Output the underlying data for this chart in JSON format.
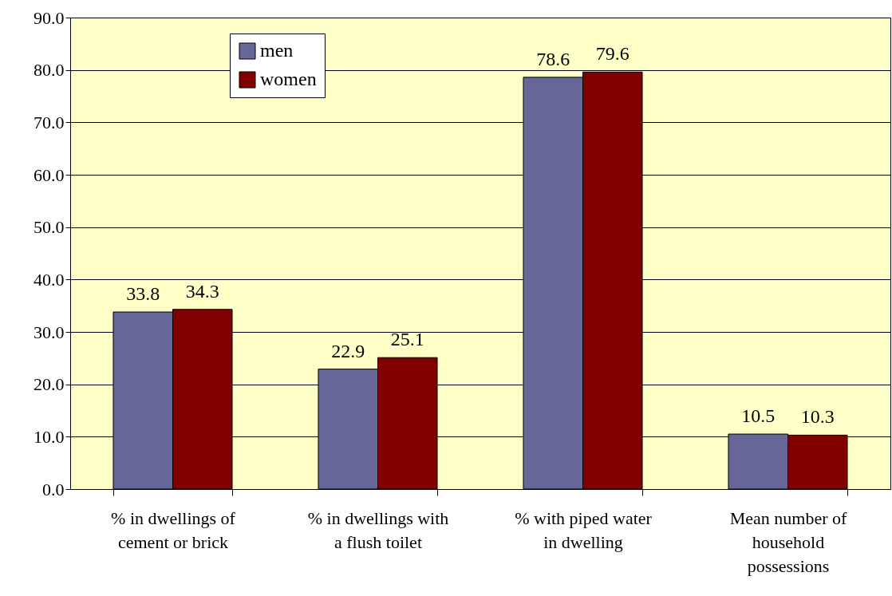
{
  "chart_data": {
    "type": "bar",
    "categories": [
      "% in dwellings of cement or brick",
      "% in dwellings with a flush toilet",
      "% with piped water in dwelling",
      "Mean number of household possessions"
    ],
    "series": [
      {
        "name": "men",
        "color": "#666699",
        "values": [
          33.8,
          22.9,
          78.6,
          10.5
        ]
      },
      {
        "name": "women",
        "color": "#800000",
        "values": [
          34.3,
          25.1,
          79.6,
          10.3
        ]
      }
    ],
    "ylim": [
      0,
      90
    ],
    "yticks": [
      {
        "value": 0,
        "label": "0.0"
      },
      {
        "value": 10,
        "label": "10.0"
      },
      {
        "value": 20,
        "label": "20.0"
      },
      {
        "value": 30,
        "label": "30.0"
      },
      {
        "value": 40,
        "label": "40.0"
      },
      {
        "value": 50,
        "label": "50.0"
      },
      {
        "value": 60,
        "label": "60.0"
      },
      {
        "value": 70,
        "label": "70.0"
      },
      {
        "value": 80,
        "label": "80.0"
      },
      {
        "value": 90,
        "label": "90.0"
      }
    ],
    "grid": "y",
    "legend": "top left",
    "data_labels": true
  }
}
